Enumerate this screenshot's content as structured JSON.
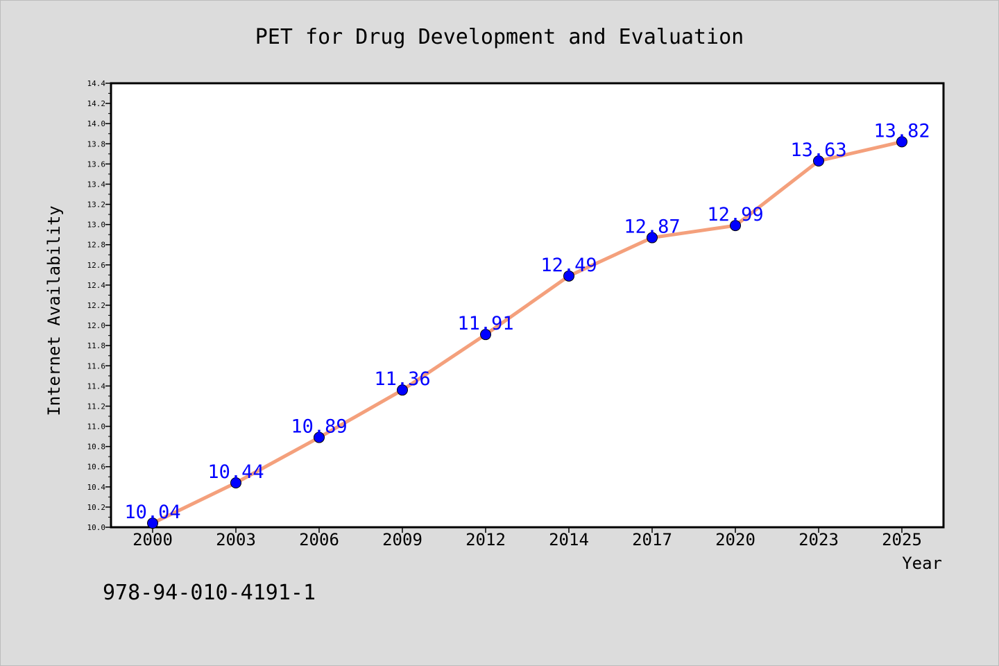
{
  "chart_data": {
    "type": "line",
    "title": "PET for Drug Development and Evaluation",
    "xlabel": "Year",
    "ylabel": "Internet Availability",
    "categories": [
      "2000",
      "2003",
      "2006",
      "2009",
      "2012",
      "2014",
      "2017",
      "2020",
      "2023",
      "2025"
    ],
    "values": [
      10.04,
      10.44,
      10.89,
      11.36,
      11.91,
      12.49,
      12.87,
      12.99,
      13.63,
      13.82
    ],
    "data_labels": [
      "10.04",
      "10.44",
      "10.89",
      "11.36",
      "11.91",
      "12.49",
      "12.87",
      "12.99",
      "13.63",
      "13.82"
    ],
    "ylim": [
      10.0,
      14.4
    ],
    "yticks": [
      "10.0",
      "10.2",
      "10.4",
      "10.6",
      "10.8",
      "11.0",
      "11.2",
      "11.4",
      "11.6",
      "11.8",
      "12.0",
      "12.2",
      "12.4",
      "12.6",
      "12.8",
      "13.0",
      "13.2",
      "13.4",
      "13.6",
      "13.8",
      "14.0",
      "14.2",
      "14.4"
    ],
    "grid": false,
    "line_color": "#f4a07c",
    "marker_color": "#0000ff",
    "label_color": "#0000ff",
    "annotation": "978-94-010-4191-1"
  }
}
